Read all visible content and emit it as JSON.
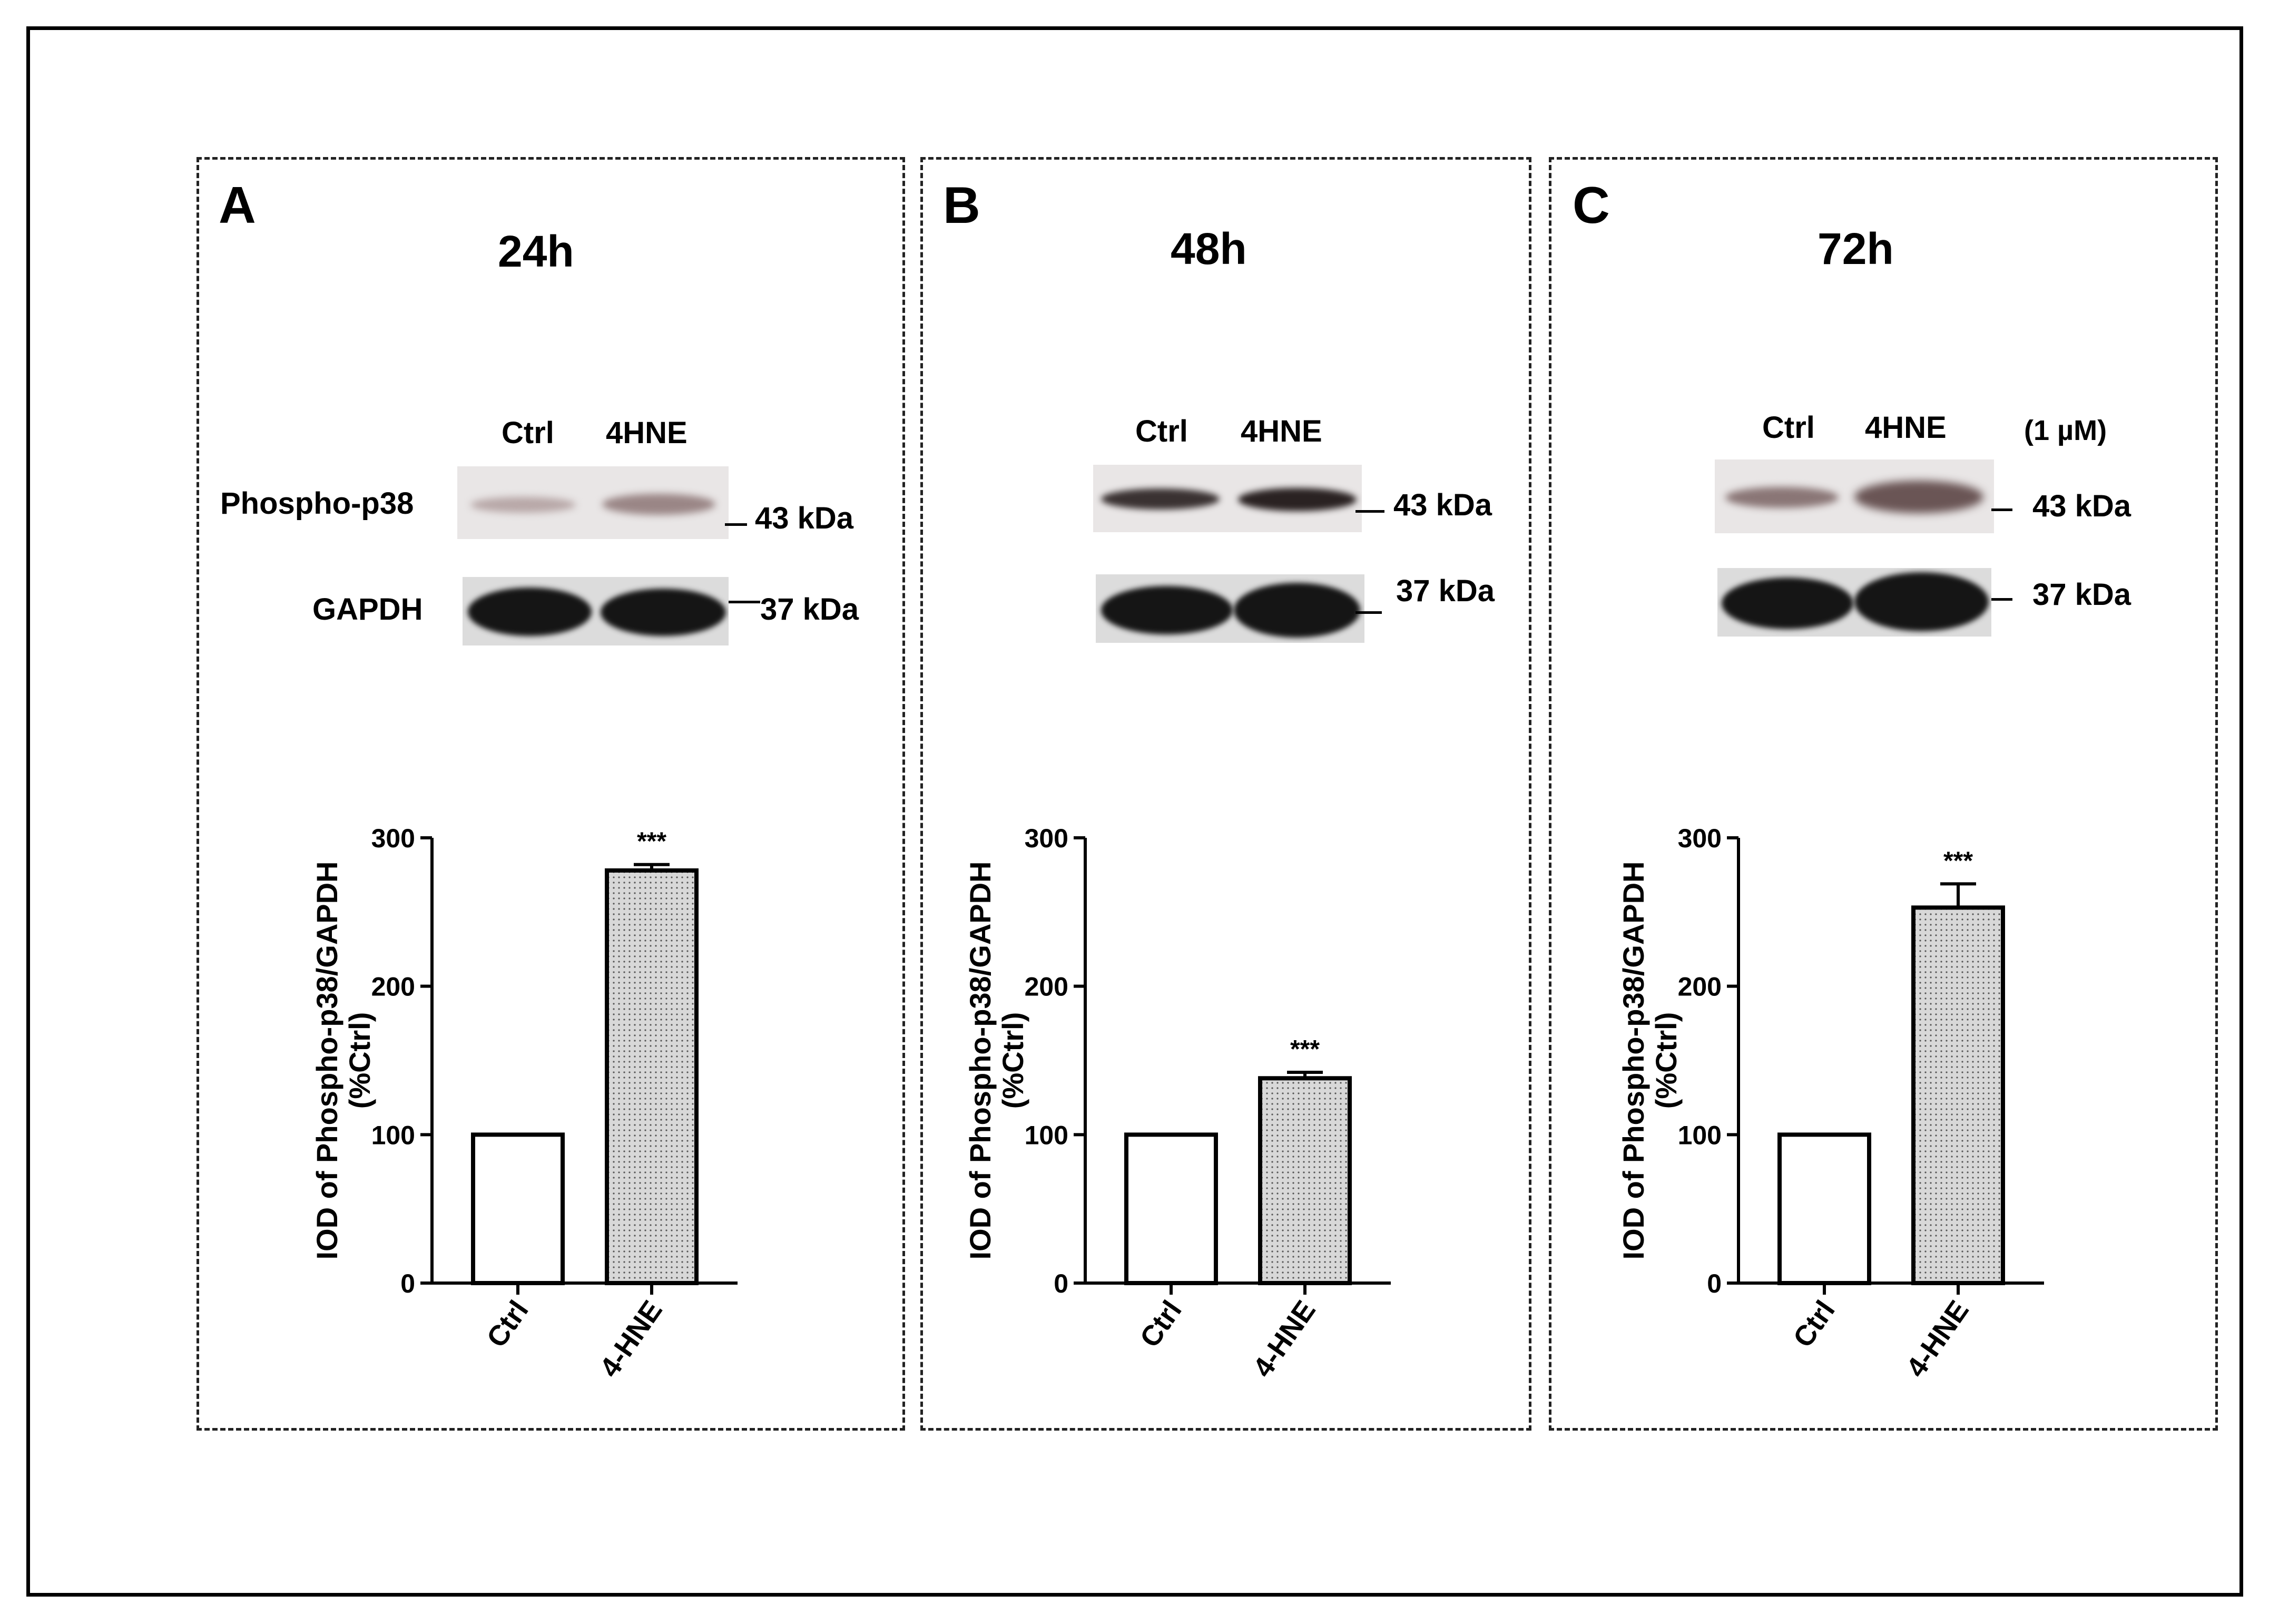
{
  "panels": [
    {
      "letter": "A",
      "time": "24h",
      "lane_labels": [
        "Ctrl",
        "4HNE"
      ],
      "concentration": "",
      "row_labels": [
        "Phospho-p38",
        "GAPDH"
      ],
      "mw_labels": [
        "43 kDa",
        "37 kDa"
      ]
    },
    {
      "letter": "B",
      "time": "48h",
      "lane_labels": [
        "Ctrl",
        "4HNE"
      ],
      "concentration": "",
      "row_labels": [
        "",
        ""
      ],
      "mw_labels": [
        "43 kDa",
        "37 kDa"
      ]
    },
    {
      "letter": "C",
      "time": "72h",
      "lane_labels": [
        "Ctrl",
        "4HNE"
      ],
      "concentration": "(1 µM)",
      "row_labels": [
        "",
        ""
      ],
      "mw_labels": [
        "43 kDa",
        "37 kDa"
      ]
    }
  ],
  "colors": {
    "bar_ctrl_fill": "#ffffff",
    "bar_treated_fill": "#d8d8d8",
    "axis": "#000000",
    "band": "#151515"
  },
  "chart_data": [
    {
      "type": "bar",
      "categories": [
        "Ctrl",
        "4-HNE"
      ],
      "values": [
        100,
        278
      ],
      "errors": [
        0,
        4
      ],
      "annotations": [
        "",
        "***"
      ],
      "ylabel": "IOD of Phospho-p38/GAPDH (%Ctrl)",
      "yticks": [
        0,
        100,
        200,
        300
      ],
      "ylim": [
        0,
        300
      ]
    },
    {
      "type": "bar",
      "categories": [
        "Ctrl",
        "4-HNE"
      ],
      "values": [
        100,
        138
      ],
      "errors": [
        0,
        4
      ],
      "annotations": [
        "",
        "***"
      ],
      "ylabel": "IOD of Phospho-p38/GAPDH (%Ctrl)",
      "yticks": [
        0,
        100,
        200,
        300
      ],
      "ylim": [
        0,
        300
      ]
    },
    {
      "type": "bar",
      "categories": [
        "Ctrl",
        "4-HNE"
      ],
      "values": [
        100,
        253
      ],
      "errors": [
        0,
        16
      ],
      "annotations": [
        "",
        "***"
      ],
      "ylabel": "IOD of Phospho-p38/GAPDH (%Ctrl)",
      "yticks": [
        0,
        100,
        200,
        300
      ],
      "ylim": [
        0,
        300
      ]
    }
  ]
}
